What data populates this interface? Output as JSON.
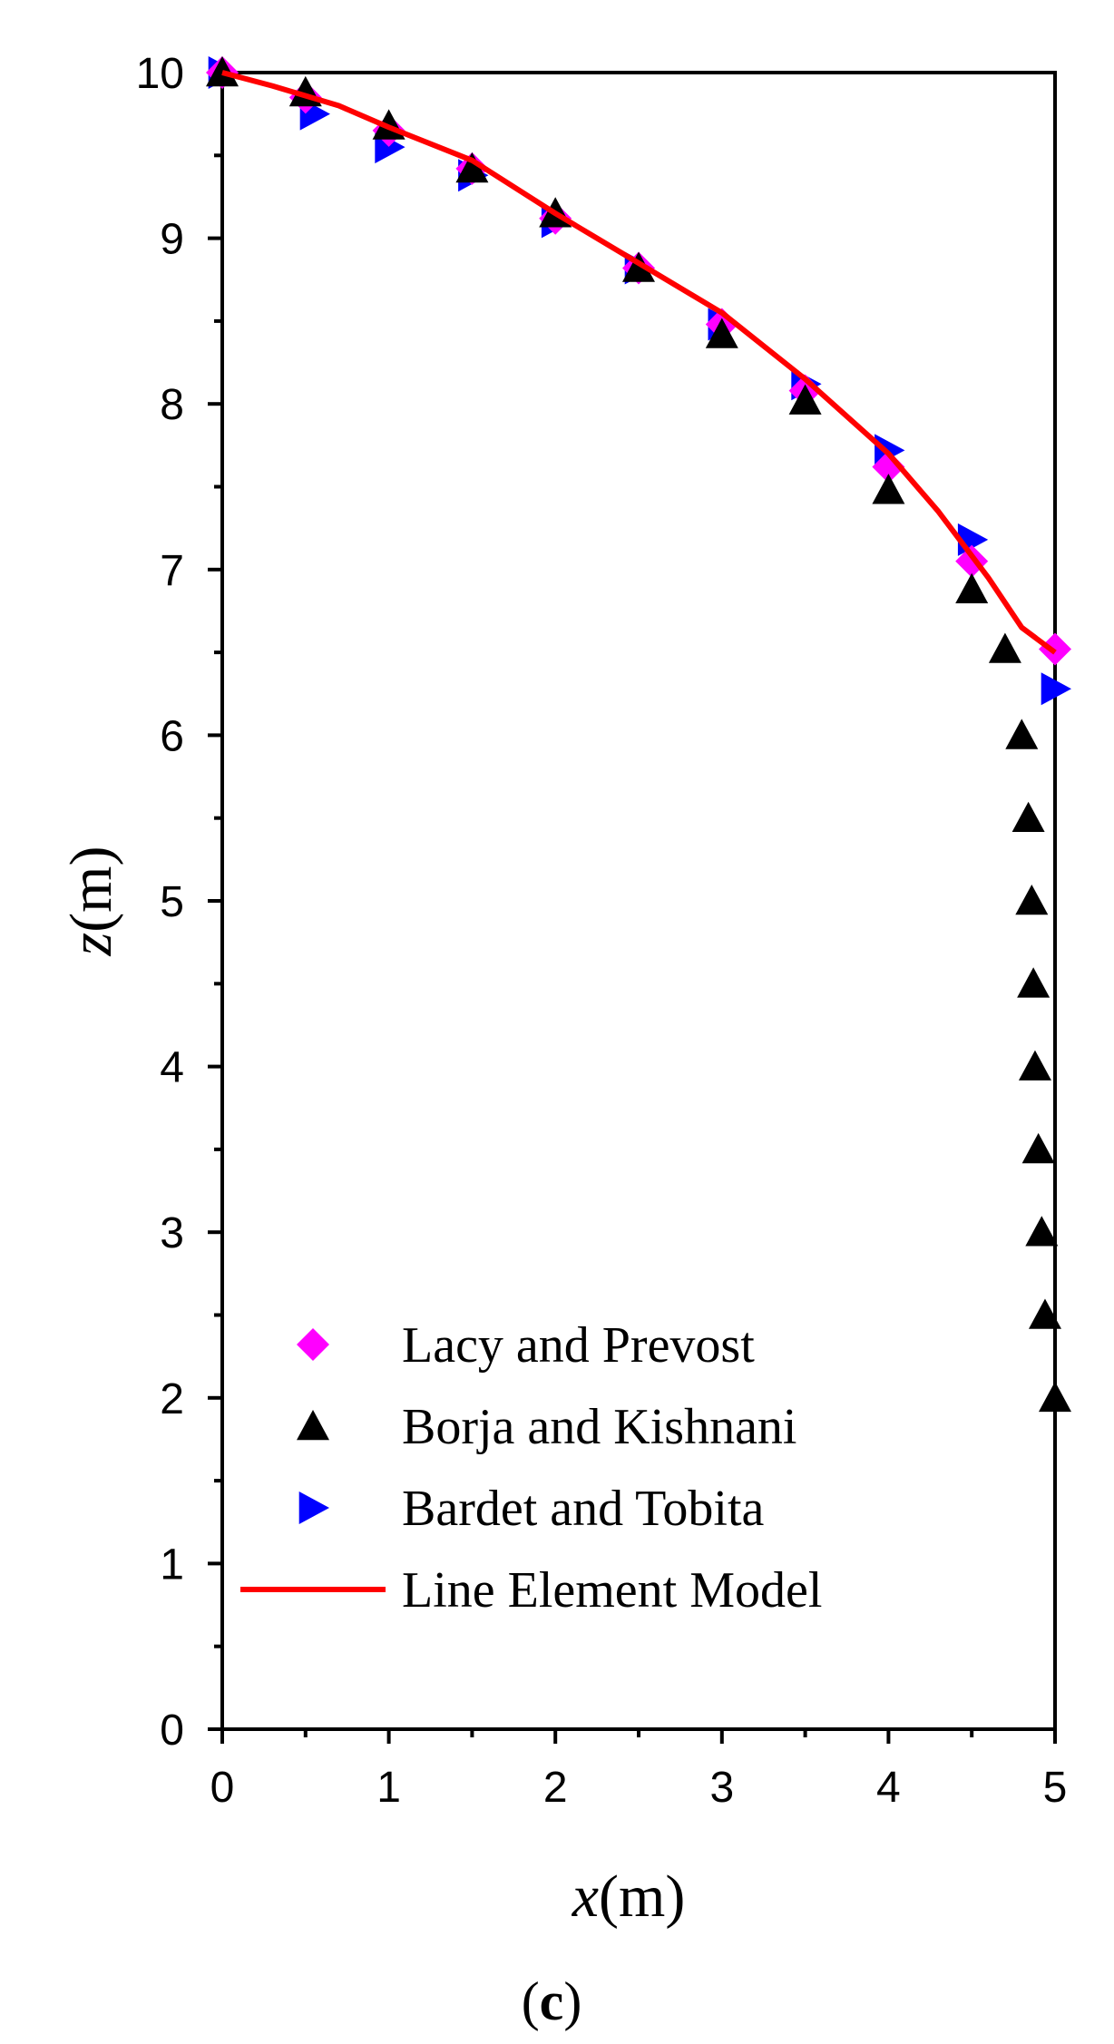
{
  "chart_data": {
    "type": "scatter",
    "panel_label": "(c)",
    "panel_label_parts": {
      "open": "(",
      "letter": "c",
      "close": ")"
    },
    "xlabel": {
      "var": "x",
      "unit": "(m)"
    },
    "ylabel": {
      "var": "z",
      "unit": "(m)"
    },
    "xlim": [
      0,
      5
    ],
    "ylim": [
      0,
      10
    ],
    "x_ticks": [
      0,
      1,
      2,
      3,
      4,
      5
    ],
    "y_ticks": [
      0,
      1,
      2,
      3,
      4,
      5,
      6,
      7,
      8,
      9,
      10
    ],
    "grid": false,
    "legend_position": "bottom-left",
    "series": [
      {
        "name": "Lacy and Prevost",
        "marker": "diamond",
        "color": "#ff00ff",
        "x": [
          0,
          0.5,
          1.0,
          1.5,
          2.0,
          2.5,
          3.0,
          3.5,
          4.0,
          4.5,
          5.0
        ],
        "y": [
          10.0,
          9.85,
          9.65,
          9.42,
          9.12,
          8.82,
          8.48,
          8.08,
          7.62,
          7.05,
          6.52
        ]
      },
      {
        "name": "Borja and Kishnani",
        "marker": "triangle-up",
        "color": "#000000",
        "x": [
          0,
          0.5,
          1.0,
          1.5,
          2.0,
          2.5,
          3.0,
          3.5,
          4.0,
          4.5,
          4.7,
          4.8,
          4.84,
          4.86,
          4.87,
          4.88,
          4.9,
          4.92,
          4.94,
          5.0
        ],
        "y": [
          10.0,
          9.88,
          9.68,
          9.42,
          9.15,
          8.82,
          8.42,
          8.02,
          7.48,
          6.88,
          6.52,
          6.0,
          5.5,
          5.0,
          4.5,
          4.0,
          3.5,
          3.0,
          2.5,
          2.0
        ]
      },
      {
        "name": "Bardet and Tobita",
        "marker": "triangle-right",
        "color": "#0000ff",
        "x": [
          0,
          0.55,
          1.0,
          1.5,
          2.0,
          2.5,
          3.0,
          3.5,
          4.0,
          4.5,
          5.0
        ],
        "y": [
          10.0,
          9.75,
          9.55,
          9.38,
          9.1,
          8.82,
          8.48,
          8.12,
          7.72,
          7.18,
          6.28
        ]
      },
      {
        "name": "Line Element Model",
        "marker": "line",
        "color": "#ff0000",
        "x": [
          0,
          0.3,
          0.7,
          1.0,
          1.5,
          2.0,
          2.5,
          3.0,
          3.5,
          4.0,
          4.3,
          4.6,
          4.8,
          5.0
        ],
        "y": [
          10.0,
          9.92,
          9.8,
          9.67,
          9.47,
          9.15,
          8.85,
          8.55,
          8.15,
          7.7,
          7.35,
          6.95,
          6.65,
          6.5
        ]
      }
    ]
  }
}
